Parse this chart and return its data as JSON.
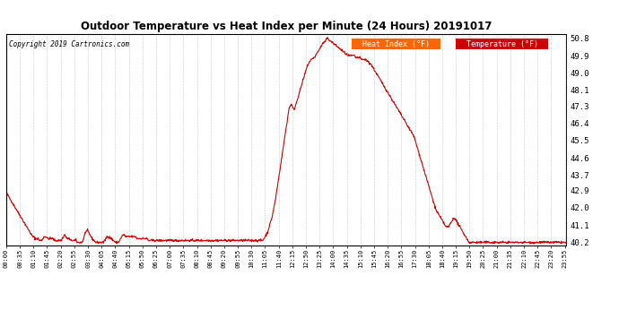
{
  "title": "Outdoor Temperature vs Heat Index per Minute (24 Hours) 20191017",
  "copyright": "Copyright 2019 Cartronics.com",
  "legend_label1": "Heat Index (°F)",
  "legend_label2": "Temperature (°F)",
  "legend_color1": "#FF6600",
  "legend_color2": "#CC0000",
  "line_color": "#CC0000",
  "bg_color": "#FFFFFF",
  "plot_bg_color": "#FFFFFF",
  "grid_color": "#BBBBBB",
  "ylabel_right_ticks": [
    40.2,
    41.1,
    42.0,
    42.9,
    43.7,
    44.6,
    45.5,
    46.4,
    47.3,
    48.1,
    49.0,
    49.9,
    50.8
  ],
  "ymin": 40.05,
  "ymax": 51.05,
  "x_tick_labels": [
    "00:00",
    "00:35",
    "01:10",
    "01:45",
    "02:20",
    "02:55",
    "03:30",
    "04:05",
    "04:40",
    "05:15",
    "05:50",
    "06:25",
    "07:00",
    "07:35",
    "08:10",
    "08:45",
    "09:20",
    "09:55",
    "10:30",
    "11:05",
    "11:40",
    "12:15",
    "12:50",
    "13:25",
    "14:00",
    "14:35",
    "15:10",
    "15:45",
    "16:20",
    "16:55",
    "17:30",
    "18:05",
    "18:40",
    "19:15",
    "19:50",
    "20:25",
    "21:00",
    "21:35",
    "22:10",
    "22:45",
    "23:20",
    "23:55"
  ],
  "temp_data": [
    42.8,
    42.7,
    42.6,
    42.5,
    42.4,
    42.3,
    42.2,
    42.1,
    42.0,
    41.9,
    41.8,
    41.7,
    41.6,
    41.5,
    41.4,
    41.3,
    41.2,
    41.1,
    41.0,
    40.9,
    40.8,
    40.7,
    40.6,
    40.5,
    40.5,
    40.4,
    40.4,
    40.4,
    40.4,
    40.3,
    40.3,
    40.3,
    40.4,
    40.5,
    40.5,
    40.5,
    40.4,
    40.4,
    40.4,
    40.4,
    40.4,
    40.4,
    40.3,
    40.3,
    40.3,
    40.3,
    40.3,
    40.3,
    40.3,
    40.4,
    40.5,
    40.6,
    40.5,
    40.4,
    40.4,
    40.4,
    40.3,
    40.3,
    40.3,
    40.3,
    40.3,
    40.3,
    40.2,
    40.2,
    40.2,
    40.2,
    40.2,
    40.3,
    40.5,
    40.7,
    40.8,
    40.8,
    40.7,
    40.6,
    40.5,
    40.4,
    40.3,
    40.3,
    40.2,
    40.2,
    40.2,
    40.2,
    40.2,
    40.2,
    40.2,
    40.2,
    40.3,
    40.4,
    40.5,
    40.5,
    40.5,
    40.4,
    40.4,
    40.3,
    40.3,
    40.2,
    40.2,
    40.2,
    40.2,
    40.3,
    40.4,
    40.5,
    40.6,
    40.6,
    40.5,
    40.5,
    40.5,
    40.5,
    40.5,
    40.5,
    40.5,
    40.5,
    40.5,
    40.5,
    40.4,
    40.4,
    40.4,
    40.4,
    40.4,
    40.4,
    40.4,
    40.4,
    40.4,
    40.4,
    40.3,
    40.3,
    40.3,
    40.3,
    40.3,
    40.3,
    40.3,
    40.3,
    40.3,
    40.3,
    40.3,
    40.3,
    40.3,
    40.3,
    40.3,
    40.3,
    40.3,
    40.3,
    40.3,
    40.3,
    40.3,
    40.3,
    40.3,
    40.3,
    40.3,
    40.3,
    40.3,
    40.3,
    40.3,
    40.3,
    40.3,
    40.3,
    40.3,
    40.3,
    40.3,
    40.3,
    40.3,
    40.3,
    40.3,
    40.3,
    40.3,
    40.3,
    40.3,
    40.3,
    40.3,
    40.3,
    40.3,
    40.3,
    40.3,
    40.3,
    40.3,
    40.3,
    40.3,
    40.3,
    40.3,
    40.3,
    40.3,
    40.3,
    40.3,
    40.3,
    40.3,
    40.3,
    40.3,
    40.3,
    40.3,
    40.3,
    40.3,
    40.3,
    40.3,
    40.3,
    40.3,
    40.3,
    40.3,
    40.3,
    40.3,
    40.3,
    40.3,
    40.3,
    40.3,
    40.3,
    40.3,
    40.3,
    40.3,
    40.3,
    40.3,
    40.3,
    40.3,
    40.3,
    40.3,
    40.3,
    40.3,
    40.3,
    40.3,
    40.3,
    40.3,
    40.3,
    40.3,
    40.3,
    40.3,
    40.3,
    40.3,
    40.4,
    40.5,
    40.6,
    40.7,
    40.9,
    41.1,
    41.3,
    41.5,
    41.8,
    42.1,
    42.4,
    42.8,
    43.2,
    43.6,
    44.0,
    44.4,
    44.8,
    45.2,
    45.6,
    46.0,
    46.4,
    46.8,
    47.2,
    47.3,
    47.4,
    47.2,
    47.1,
    47.2,
    47.4,
    47.6,
    47.8,
    48.0,
    48.2,
    48.4,
    48.6,
    48.8,
    49.0,
    49.2,
    49.4,
    49.5,
    49.6,
    49.7,
    49.7,
    49.8,
    49.8,
    49.9,
    50.0,
    50.1,
    50.2,
    50.3,
    50.4,
    50.5,
    50.6,
    50.6,
    50.7,
    50.8,
    50.8,
    50.7,
    50.7,
    50.6,
    50.6,
    50.5,
    50.5,
    50.4,
    50.4,
    50.3,
    50.3,
    50.2,
    50.2,
    50.1,
    50.1,
    50.0,
    50.0,
    49.9,
    49.9,
    49.9,
    49.9,
    49.9,
    49.9,
    49.9,
    49.8,
    49.8,
    49.8,
    49.8,
    49.8,
    49.7,
    49.7,
    49.7,
    49.7,
    49.7,
    49.6,
    49.6,
    49.5,
    49.5,
    49.4,
    49.3,
    49.2,
    49.1,
    49.0,
    48.9,
    48.8,
    48.7,
    48.6,
    48.5,
    48.4,
    48.3,
    48.2,
    48.1,
    48.0,
    47.9,
    47.8,
    47.7,
    47.6,
    47.5,
    47.4,
    47.3,
    47.2,
    47.1,
    47.0,
    46.9,
    46.8,
    46.7,
    46.6,
    46.5,
    46.4,
    46.3,
    46.2,
    46.1,
    46.0,
    45.9,
    45.8,
    45.7,
    45.5,
    45.3,
    45.1,
    44.9,
    44.7,
    44.5,
    44.3,
    44.1,
    43.9,
    43.7,
    43.5,
    43.3,
    43.1,
    42.9,
    42.7,
    42.5,
    42.3,
    42.1,
    41.9,
    41.8,
    41.7,
    41.6,
    41.5,
    41.4,
    41.3,
    41.2,
    41.1,
    41.0,
    41.0,
    41.0,
    41.1,
    41.2,
    41.3,
    41.4,
    41.5,
    41.4,
    41.3,
    41.2,
    41.1,
    41.0,
    40.9,
    40.8,
    40.7,
    40.6,
    40.5,
    40.4,
    40.3,
    40.2,
    40.2,
    40.2,
    40.2,
    40.2,
    40.2,
    40.2,
    40.2,
    40.2,
    40.2,
    40.2,
    40.2,
    40.2,
    40.2,
    40.2,
    40.2,
    40.2,
    40.2,
    40.2,
    40.2,
    40.2,
    40.2,
    40.2,
    40.2,
    40.2,
    40.2,
    40.2,
    40.2,
    40.2,
    40.2,
    40.2,
    40.2,
    40.2,
    40.2,
    40.2,
    40.2,
    40.2,
    40.2,
    40.2,
    40.2,
    40.2,
    40.2,
    40.2,
    40.2,
    40.2,
    40.2,
    40.2,
    40.2,
    40.2,
    40.2,
    40.2,
    40.2,
    40.2,
    40.2,
    40.2,
    40.2,
    40.2,
    40.2,
    40.2,
    40.2,
    40.2,
    40.2,
    40.2,
    40.2,
    40.2,
    40.2,
    40.2,
    40.2,
    40.2,
    40.2,
    40.2,
    40.2,
    40.2,
    40.2,
    40.2,
    40.2,
    40.2,
    40.2,
    40.2,
    40.2,
    40.2,
    40.2,
    40.2,
    40.2,
    40.2,
    40.1
  ]
}
